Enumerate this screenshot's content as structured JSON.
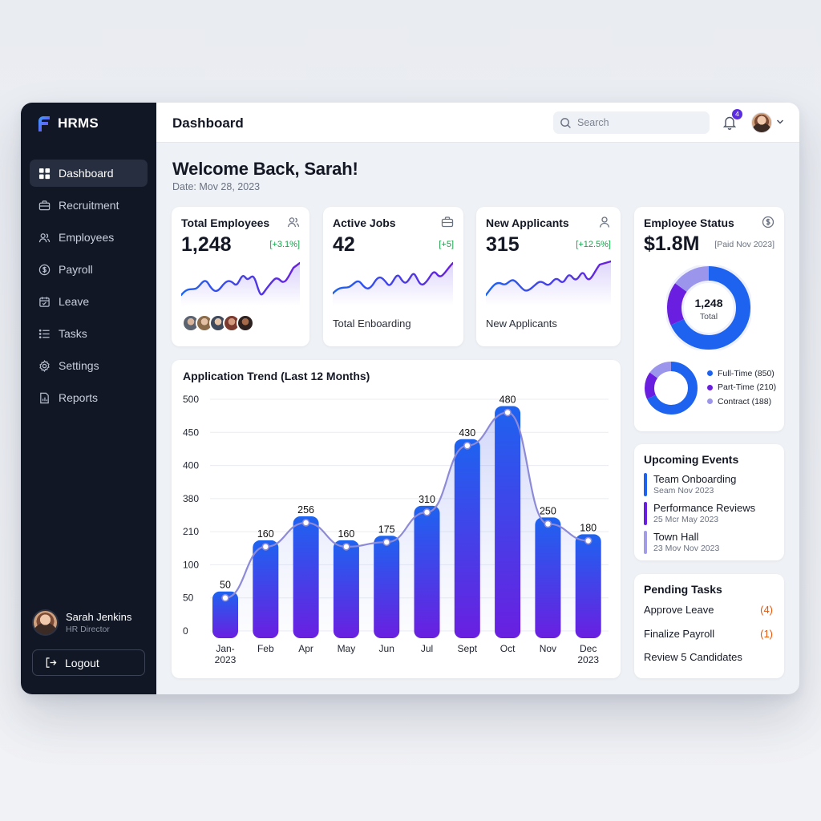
{
  "app": {
    "brand": "HRMS"
  },
  "sidebar": {
    "items": [
      {
        "label": "Dashboard",
        "icon": "dashboard-icon",
        "active": true
      },
      {
        "label": "Recruitment",
        "icon": "briefcase-icon"
      },
      {
        "label": "Employees",
        "icon": "users-icon"
      },
      {
        "label": "Payroll",
        "icon": "dollar-icon"
      },
      {
        "label": "Leave",
        "icon": "calendar-icon"
      },
      {
        "label": "Tasks",
        "icon": "list-icon"
      },
      {
        "label": "Settings",
        "icon": "settings-icon"
      },
      {
        "label": "Reports",
        "icon": "report-icon"
      }
    ],
    "user": {
      "name": "Sarah Jenkins",
      "role": "HR Director"
    },
    "logout_label": "Logout"
  },
  "header": {
    "title": "Dashboard",
    "search_placeholder": "Search",
    "notification_count": "4"
  },
  "welcome": {
    "heading": "Welcome Back, Sarah!",
    "date": "Date: Mov 28, 2023"
  },
  "kpis": [
    {
      "title": "Total Employees",
      "value": "1,248",
      "delta": "[+3.1%]",
      "icon": "users-icon"
    },
    {
      "title": "Active Jobs",
      "value": "42",
      "delta": "[+5]",
      "sub": "Total Enboarding",
      "icon": "briefcase-icon"
    },
    {
      "title": "New Applicants",
      "value": "315",
      "delta": "[+12.5%]",
      "sub": "New Applicants",
      "icon": "user-icon"
    }
  ],
  "employee_status": {
    "title": "Employee Status",
    "value": "$1.8M",
    "note": "[Paid Nov 2023]",
    "center_value": "1,248",
    "center_label": "Total",
    "legend": [
      {
        "label": "Full-Time (850)",
        "color": "#1e63f0"
      },
      {
        "label": "Part-Time (210)",
        "color": "#6a1fe0"
      },
      {
        "label": "Contract (188)",
        "color": "#9b95ec"
      }
    ]
  },
  "events": {
    "title": "Upcoming Events",
    "items": [
      {
        "name": "Team Onboarding",
        "date": "Seam Nov 2023",
        "color": "#1e63f0"
      },
      {
        "name": "Performance Reviews",
        "date": "25 Mcr May 2023",
        "color": "#6a1fe0"
      },
      {
        "name": "Town Hall",
        "date": "23 Mov Nov 2023",
        "color": "#a39de8"
      }
    ]
  },
  "tasks": {
    "title": "Pending Tasks",
    "items": [
      {
        "label": "Approve Leave",
        "count": "(4)"
      },
      {
        "label": "Finalize Payroll",
        "count": "(1)"
      },
      {
        "label": "Review 5 Candidates",
        "count": ""
      }
    ]
  },
  "chart_data": {
    "type": "bar",
    "title": "Application Trend (Last 12 Months)",
    "categories": [
      "Jan-\n2023",
      "Feb",
      "Apr",
      "May",
      "Jun",
      "Jul",
      "Sept",
      "Oct",
      "Nov",
      "Dec\n2023"
    ],
    "values": [
      50,
      160,
      256,
      160,
      175,
      310,
      430,
      480,
      250,
      180
    ],
    "yticks": [
      "0",
      "50",
      "100",
      "210",
      "380",
      "400",
      "450",
      "500"
    ],
    "overlay": "line",
    "grid": true,
    "colors": {
      "bar_top": "#1e63f0",
      "bar_bottom": "#6a1fe0",
      "line": "#8d8ad8"
    }
  }
}
